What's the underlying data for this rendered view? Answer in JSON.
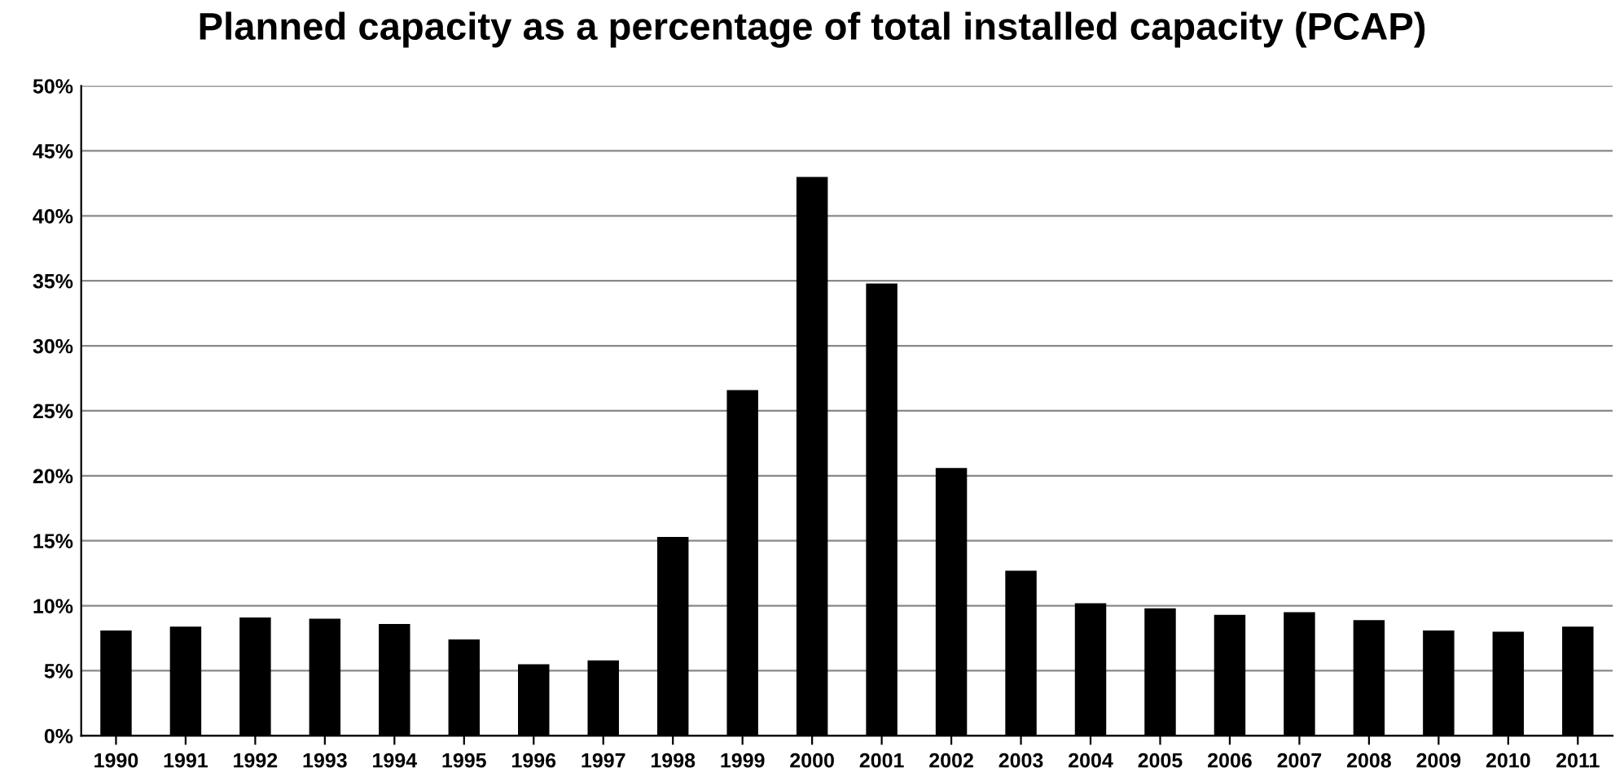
{
  "chart_data": {
    "type": "bar",
    "title": "Planned capacity as a percentage of total installed capacity (PCAP)",
    "categories": [
      "1990",
      "1991",
      "1992",
      "1993",
      "1994",
      "1995",
      "1996",
      "1997",
      "1998",
      "1999",
      "2000",
      "2001",
      "2002",
      "2003",
      "2004",
      "2005",
      "2006",
      "2007",
      "2008",
      "2009",
      "2010",
      "2011"
    ],
    "values": [
      8.1,
      8.4,
      9.1,
      9.0,
      8.6,
      7.4,
      5.5,
      5.8,
      15.3,
      26.6,
      43.0,
      34.8,
      20.6,
      12.7,
      10.2,
      9.8,
      9.3,
      9.5,
      8.9,
      8.1,
      8.0,
      8.4
    ],
    "color": "#000000",
    "ylim": [
      0,
      50
    ],
    "yticks": [
      {
        "value": 0,
        "label": "0%"
      },
      {
        "value": 5,
        "label": "5%"
      },
      {
        "value": 10,
        "label": "10%"
      },
      {
        "value": 15,
        "label": "15%"
      },
      {
        "value": 20,
        "label": "20%"
      },
      {
        "value": 25,
        "label": "25%"
      },
      {
        "value": 30,
        "label": "30%"
      },
      {
        "value": 35,
        "label": "35%"
      },
      {
        "value": 40,
        "label": "40%"
      },
      {
        "value": 45,
        "label": "45%"
      },
      {
        "value": 50,
        "label": "50%"
      }
    ],
    "grid": "y"
  }
}
